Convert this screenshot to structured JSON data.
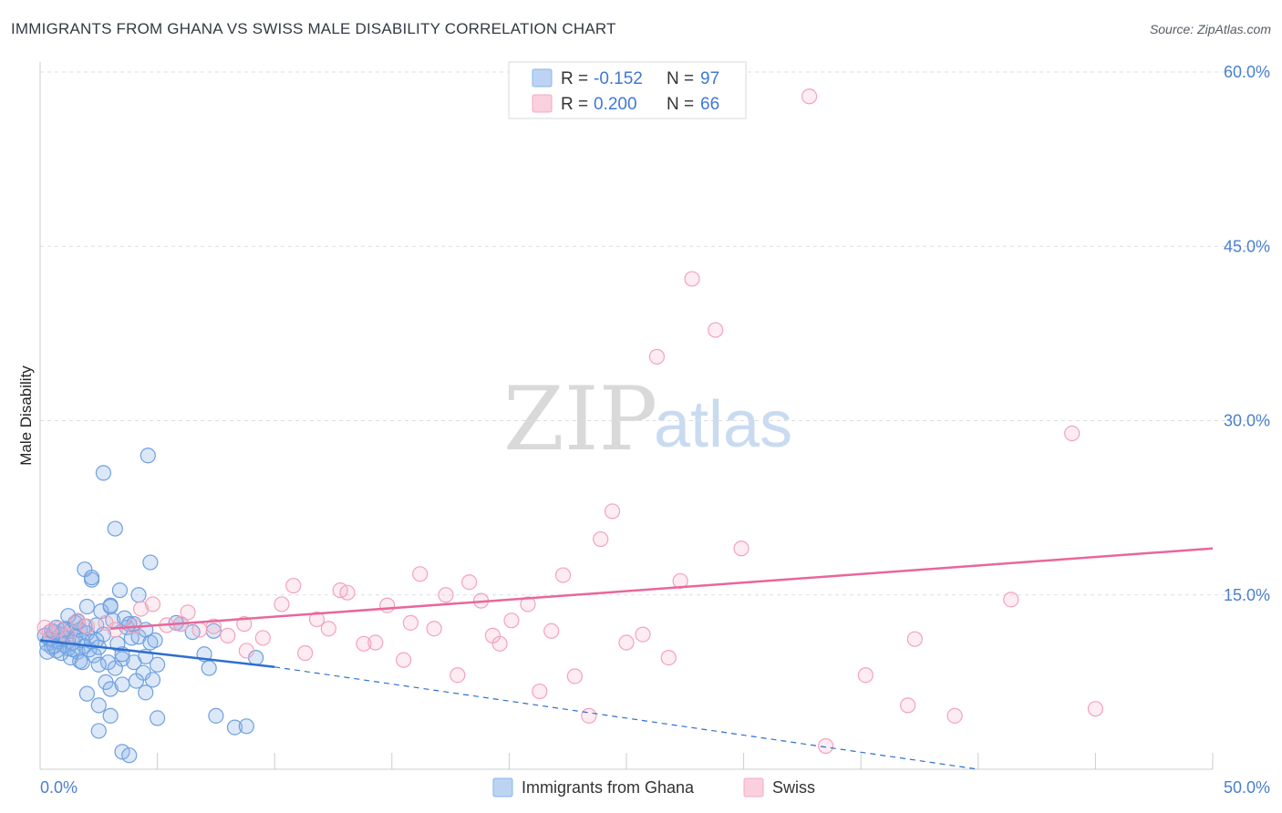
{
  "title": "IMMIGRANTS FROM GHANA VS SWISS MALE DISABILITY CORRELATION CHART",
  "source": "Source: ZipAtlas.com",
  "watermark": {
    "zip": "ZIP",
    "atlas": "atlas"
  },
  "legend": {
    "r_label": "R =",
    "n_label": "N =",
    "series": [
      {
        "r": "-0.152",
        "n": "97",
        "color": "#8ab4e8"
      },
      {
        "r": "0.200",
        "n": "66",
        "color": "#f4a9c0"
      }
    ]
  },
  "chart_data": {
    "type": "scatter",
    "title": "IMMIGRANTS FROM GHANA VS SWISS MALE DISABILITY CORRELATION CHART",
    "xlabel": "",
    "ylabel": "Male Disability",
    "xlim": [
      0,
      50
    ],
    "ylim": [
      0,
      60
    ],
    "x_tick_labels": [
      "0.0%",
      "50.0%"
    ],
    "y_ticks": [
      15,
      30,
      45,
      60
    ],
    "y_tick_labels": [
      "15.0%",
      "30.0%",
      "45.0%",
      "60.0%"
    ],
    "grid": true,
    "series": [
      {
        "name": "Immigrants from Ghana",
        "color": "#6fa0e0",
        "trend": {
          "x0": 0,
          "y0": 11.1,
          "x1": 10,
          "y1": 8.8,
          "dash_to_x": 40,
          "dash_to_y": 0
        },
        "points": [
          [
            0.2,
            11.5
          ],
          [
            0.3,
            10.8
          ],
          [
            0.4,
            11.2
          ],
          [
            0.5,
            10.5
          ],
          [
            0.6,
            11.8
          ],
          [
            0.7,
            10.2
          ],
          [
            0.8,
            11.0
          ],
          [
            0.9,
            11.6
          ],
          [
            1.0,
            10.7
          ],
          [
            1.1,
            11.3
          ],
          [
            1.2,
            10.4
          ],
          [
            1.3,
            11.9
          ],
          [
            1.4,
            10.9
          ],
          [
            1.5,
            11.4
          ],
          [
            1.6,
            10.1
          ],
          [
            1.7,
            12.0
          ],
          [
            1.8,
            11.1
          ],
          [
            1.9,
            10.6
          ],
          [
            2.0,
            11.7
          ],
          [
            2.1,
            10.3
          ],
          [
            0.3,
            10.1
          ],
          [
            0.5,
            11.9
          ],
          [
            0.7,
            12.2
          ],
          [
            0.9,
            10.0
          ],
          [
            1.1,
            12.1
          ],
          [
            1.3,
            9.6
          ],
          [
            1.5,
            12.6
          ],
          [
            1.7,
            9.3
          ],
          [
            1.9,
            12.3
          ],
          [
            2.2,
            11.0
          ],
          [
            2.3,
            9.8
          ],
          [
            2.4,
            12.4
          ],
          [
            2.5,
            10.5
          ],
          [
            2.7,
            11.6
          ],
          [
            2.9,
            9.2
          ],
          [
            3.1,
            12.8
          ],
          [
            3.3,
            10.8
          ],
          [
            3.5,
            9.5
          ],
          [
            3.7,
            12.2
          ],
          [
            3.9,
            11.3
          ],
          [
            1.2,
            13.2
          ],
          [
            1.6,
            12.7
          ],
          [
            2.0,
            14.0
          ],
          [
            2.2,
            16.3
          ],
          [
            1.9,
            17.2
          ],
          [
            2.6,
            13.6
          ],
          [
            3.0,
            14.1
          ],
          [
            3.4,
            15.4
          ],
          [
            3.6,
            13.0
          ],
          [
            4.0,
            12.5
          ],
          [
            4.2,
            11.4
          ],
          [
            4.5,
            12.0
          ],
          [
            4.7,
            10.9
          ],
          [
            3.2,
            8.7
          ],
          [
            2.8,
            7.5
          ],
          [
            2.5,
            9.0
          ],
          [
            3.0,
            6.9
          ],
          [
            3.5,
            9.9
          ],
          [
            4.0,
            9.2
          ],
          [
            4.4,
            8.3
          ],
          [
            4.8,
            7.7
          ],
          [
            2.0,
            6.5
          ],
          [
            2.5,
            5.5
          ],
          [
            3.0,
            4.6
          ],
          [
            3.5,
            7.3
          ],
          [
            4.1,
            7.6
          ],
          [
            4.5,
            6.6
          ],
          [
            5.0,
            4.4
          ],
          [
            2.5,
            3.3
          ],
          [
            3.5,
            1.5
          ],
          [
            3.8,
            1.2
          ],
          [
            2.7,
            25.5
          ],
          [
            4.6,
            27.0
          ],
          [
            3.2,
            20.7
          ],
          [
            4.7,
            17.8
          ],
          [
            2.2,
            16.5
          ],
          [
            3.0,
            14.0
          ],
          [
            4.2,
            15.0
          ],
          [
            4.5,
            9.7
          ],
          [
            5.0,
            9.0
          ],
          [
            6.0,
            12.5
          ],
          [
            6.5,
            11.8
          ],
          [
            7.0,
            9.9
          ],
          [
            7.2,
            8.7
          ],
          [
            7.4,
            11.9
          ],
          [
            9.2,
            9.6
          ],
          [
            7.5,
            4.6
          ],
          [
            8.3,
            3.6
          ],
          [
            8.8,
            3.7
          ],
          [
            1.0,
            12.0
          ],
          [
            0.6,
            10.6
          ],
          [
            1.4,
            10.3
          ],
          [
            2.4,
            11.1
          ],
          [
            3.8,
            12.5
          ],
          [
            4.9,
            11.1
          ],
          [
            5.8,
            12.6
          ],
          [
            1.8,
            9.2
          ]
        ]
      },
      {
        "name": "Swiss",
        "color": "#f08fb0",
        "trend": {
          "x0": 3,
          "y0": 12.1,
          "x1": 50,
          "y1": 19.0
        },
        "points": [
          [
            0.4,
            11.8
          ],
          [
            0.8,
            12.1
          ],
          [
            1.2,
            11.5
          ],
          [
            2.0,
            12.3
          ],
          [
            2.8,
            12.6
          ],
          [
            3.2,
            12.0
          ],
          [
            4.0,
            12.3
          ],
          [
            4.3,
            13.8
          ],
          [
            4.8,
            14.2
          ],
          [
            5.4,
            12.4
          ],
          [
            6.0,
            12.5
          ],
          [
            6.3,
            13.5
          ],
          [
            6.8,
            12.0
          ],
          [
            7.4,
            12.3
          ],
          [
            8.0,
            11.5
          ],
          [
            8.7,
            12.5
          ],
          [
            8.8,
            10.2
          ],
          [
            9.5,
            11.3
          ],
          [
            10.3,
            14.2
          ],
          [
            10.8,
            15.8
          ],
          [
            11.3,
            10.0
          ],
          [
            11.8,
            12.9
          ],
          [
            12.3,
            12.1
          ],
          [
            12.8,
            15.4
          ],
          [
            13.1,
            15.2
          ],
          [
            13.8,
            10.8
          ],
          [
            14.3,
            10.9
          ],
          [
            14.8,
            14.1
          ],
          [
            15.5,
            9.4
          ],
          [
            15.8,
            12.6
          ],
          [
            16.2,
            16.8
          ],
          [
            16.8,
            12.1
          ],
          [
            17.3,
            15.0
          ],
          [
            17.8,
            8.1
          ],
          [
            18.3,
            16.1
          ],
          [
            18.8,
            14.5
          ],
          [
            19.3,
            11.5
          ],
          [
            19.6,
            10.8
          ],
          [
            20.1,
            12.8
          ],
          [
            20.8,
            14.2
          ],
          [
            21.3,
            6.7
          ],
          [
            21.8,
            11.9
          ],
          [
            22.3,
            16.7
          ],
          [
            22.8,
            8.0
          ],
          [
            23.4,
            4.6
          ],
          [
            23.9,
            19.8
          ],
          [
            24.4,
            22.2
          ],
          [
            25.0,
            10.9
          ],
          [
            25.7,
            11.6
          ],
          [
            26.3,
            35.5
          ],
          [
            26.8,
            9.6
          ],
          [
            27.3,
            16.2
          ],
          [
            27.8,
            42.2
          ],
          [
            28.8,
            37.8
          ],
          [
            29.9,
            19.0
          ],
          [
            32.8,
            57.9
          ],
          [
            33.5,
            2.0
          ],
          [
            35.2,
            8.1
          ],
          [
            37.0,
            5.5
          ],
          [
            37.3,
            11.2
          ],
          [
            39.0,
            4.6
          ],
          [
            41.4,
            14.6
          ],
          [
            44.0,
            28.9
          ],
          [
            45.0,
            5.2
          ],
          [
            0.2,
            12.2
          ],
          [
            1.6,
            12.8
          ]
        ]
      }
    ]
  },
  "bottom_legend": [
    {
      "label": "Immigrants from Ghana",
      "color": "#8ab4e8"
    },
    {
      "label": "Swiss",
      "color": "#f4a9c0"
    }
  ]
}
